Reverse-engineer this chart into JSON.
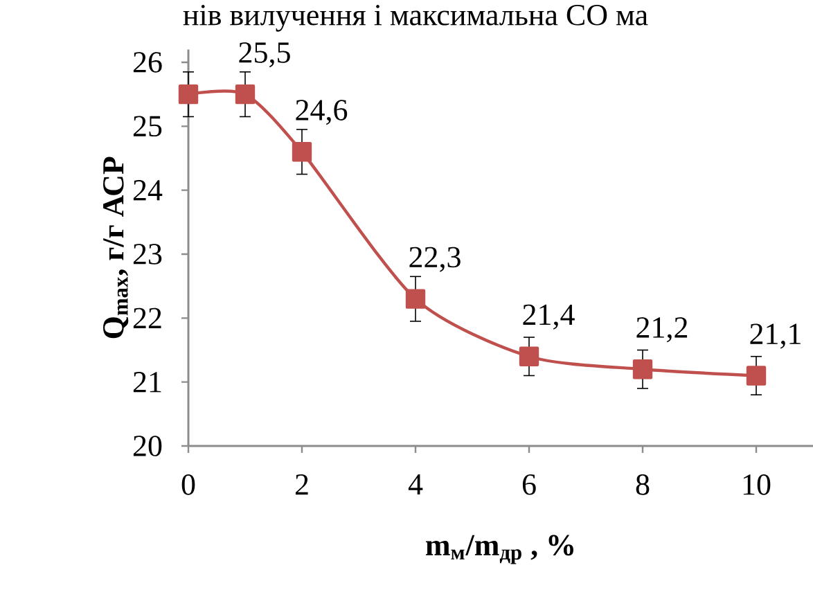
{
  "chart_data": {
    "type": "line",
    "title": "нів вилучення і максимальна СО ма",
    "xlabel": "**m$_{м}$/m$_{др}$ , %**",
    "ylabel": "**Q$_{max}$, г/г АСР**",
    "x": [
      0,
      1,
      2,
      4,
      6,
      8,
      10
    ],
    "series": [
      {
        "color": "#c0504d",
        "values": [
          25.5,
          25.5,
          24.6,
          22.3,
          21.4,
          21.2,
          21.1
        ],
        "errors": [
          0.35,
          0.35,
          0.35,
          0.35,
          0.3,
          0.3,
          0.3
        ],
        "value_labels": [
          null,
          "25,5",
          "24,6",
          "22,3",
          "21,4",
          "21,2",
          "21,1"
        ]
      }
    ],
    "xlim": [
      0,
      11
    ],
    "ylim": [
      20,
      26.2
    ],
    "xticks": [
      0,
      2,
      4,
      6,
      8,
      10
    ],
    "yticks": [
      20,
      21,
      22,
      23,
      24,
      25,
      26
    ],
    "marker": "square",
    "line_style": "solid"
  }
}
